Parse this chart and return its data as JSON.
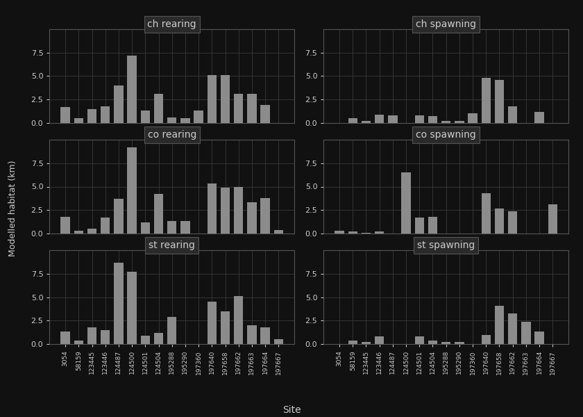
{
  "categories": [
    "3054",
    "58159",
    "123445",
    "123446",
    "124487",
    "124500",
    "124501",
    "124504",
    "195288",
    "195290",
    "197360",
    "197640",
    "197658",
    "197662",
    "197663",
    "197664",
    "197667"
  ],
  "panels": [
    {
      "title": "ch rearing",
      "values": [
        1.7,
        0.5,
        1.5,
        1.8,
        4.0,
        7.2,
        1.3,
        3.1,
        0.6,
        0.5,
        1.3,
        5.1,
        5.1,
        3.1,
        3.1,
        1.9,
        0.0
      ]
    },
    {
      "title": "ch spawning",
      "values": [
        0.0,
        0.5,
        0.2,
        0.9,
        0.8,
        0.0,
        0.8,
        0.7,
        0.2,
        0.2,
        1.0,
        4.8,
        4.6,
        1.8,
        0.0,
        1.2,
        0.0
      ]
    },
    {
      "title": "co rearing",
      "values": [
        1.8,
        0.3,
        0.5,
        1.7,
        3.7,
        9.2,
        1.2,
        4.2,
        1.3,
        1.3,
        0.0,
        5.3,
        4.9,
        5.0,
        3.3,
        3.8,
        0.4
      ]
    },
    {
      "title": "co spawning",
      "values": [
        0.3,
        0.2,
        0.1,
        0.2,
        0.0,
        6.5,
        1.7,
        1.8,
        0.0,
        0.0,
        0.0,
        4.3,
        2.7,
        2.4,
        0.0,
        0.0,
        3.1
      ]
    },
    {
      "title": "st rearing",
      "values": [
        1.3,
        0.4,
        1.8,
        1.5,
        8.7,
        7.7,
        0.9,
        1.2,
        2.9,
        0.0,
        0.0,
        4.5,
        3.5,
        5.1,
        2.0,
        1.8,
        0.5
      ]
    },
    {
      "title": "st spawning",
      "values": [
        0.0,
        0.4,
        0.2,
        0.8,
        0.0,
        0.0,
        0.8,
        0.4,
        0.2,
        0.2,
        0.0,
        1.0,
        4.1,
        3.3,
        2.4,
        1.3,
        0.0
      ]
    }
  ],
  "bar_color": "#8c8c8c",
  "bg_color": "#111111",
  "panel_title_bg": "#2a2a2a",
  "text_color": "#cccccc",
  "grid_color": "#3a3a3a",
  "spine_color": "#555555",
  "ylabel": "Modelled habitat (km)",
  "xlabel": "Site",
  "ylim": [
    0,
    10.0
  ],
  "yticks": [
    0.0,
    2.5,
    5.0,
    7.5
  ],
  "figsize": [
    8.4,
    6.0
  ],
  "dpi": 100
}
